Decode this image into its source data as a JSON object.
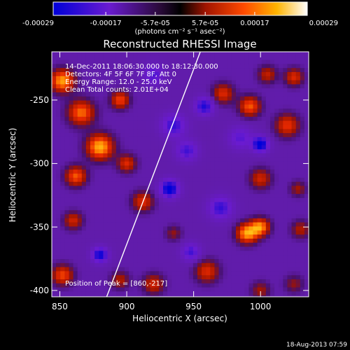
{
  "chart_data": {
    "type": "heatmap",
    "title": "Reconstructed RHESSI Image",
    "xlabel": "Heliocentric X (arcsec)",
    "ylabel": "Heliocentric Y (arcsec)",
    "xlim": [
      844,
      1036
    ],
    "ylim": [
      -405,
      -212
    ],
    "x_ticks": [
      850,
      900,
      950,
      1000
    ],
    "y_ticks": [
      -250,
      -300,
      -350,
      -400
    ],
    "colorbar": {
      "range": [
        -0.00029,
        0.00029
      ],
      "tick_values": [
        -0.00029,
        -0.00017,
        -5.7e-05,
        5.7e-05,
        0.00017,
        0.00029
      ],
      "tick_labels": [
        "-0.00029",
        "-0.00017",
        "-5.7e-05",
        "5.7e-05",
        "0.00017",
        "0.00029"
      ],
      "unit_label": "(photons cm⁻² s⁻¹ asec⁻²)",
      "colors": [
        "#0000d8",
        "#8c1cc8",
        "#000000",
        "#c81e00",
        "#ff8c00",
        "#ffffff"
      ]
    },
    "annotations": {
      "time": "14-Dec-2011 18:06:30.000 to 18:12:30.000",
      "detectors": "Detectors: 4F 5F 6F 7F 8F, Att 0",
      "energy": "Energy Range: 12.0 - 25.0 keV",
      "clean": "Clean    Total counts: 2.01E+04",
      "peak": "Position of Peak = [860,-217]"
    },
    "limb_line": [
      [
        885,
        -405
      ],
      [
        955,
        -212
      ]
    ],
    "field_blobs": [
      {
        "x": 852,
        "y": -235,
        "a": 0.95,
        "r": 9
      },
      {
        "x": 866,
        "y": -260,
        "a": 0.8,
        "r": 10
      },
      {
        "x": 895,
        "y": -250,
        "a": 0.7,
        "r": 7
      },
      {
        "x": 880,
        "y": -287,
        "a": 1.0,
        "r": 10
      },
      {
        "x": 862,
        "y": -310,
        "a": 0.75,
        "r": 8
      },
      {
        "x": 900,
        "y": -300,
        "a": 0.6,
        "r": 7
      },
      {
        "x": 860,
        "y": -345,
        "a": 0.55,
        "r": 7
      },
      {
        "x": 880,
        "y": -372,
        "a": -0.8,
        "r": 6
      },
      {
        "x": 895,
        "y": -392,
        "a": 0.45,
        "r": 7
      },
      {
        "x": 852,
        "y": -388,
        "a": 0.7,
        "r": 8
      },
      {
        "x": 920,
        "y": -230,
        "a": -0.5,
        "r": 8
      },
      {
        "x": 935,
        "y": -270,
        "a": -0.6,
        "r": 9
      },
      {
        "x": 912,
        "y": -330,
        "a": 0.6,
        "r": 8
      },
      {
        "x": 932,
        "y": -320,
        "a": -0.9,
        "r": 7
      },
      {
        "x": 945,
        "y": -290,
        "a": -0.55,
        "r": 8
      },
      {
        "x": 935,
        "y": -355,
        "a": 0.35,
        "r": 6
      },
      {
        "x": 920,
        "y": -395,
        "a": 0.55,
        "r": 8
      },
      {
        "x": 958,
        "y": -255,
        "a": -0.7,
        "r": 7
      },
      {
        "x": 972,
        "y": -245,
        "a": 0.6,
        "r": 8
      },
      {
        "x": 992,
        "y": -255,
        "a": 0.75,
        "r": 8
      },
      {
        "x": 1005,
        "y": -230,
        "a": 0.5,
        "r": 7
      },
      {
        "x": 1025,
        "y": -232,
        "a": 0.6,
        "r": 7
      },
      {
        "x": 1020,
        "y": -270,
        "a": 0.65,
        "r": 9
      },
      {
        "x": 985,
        "y": -280,
        "a": -0.45,
        "r": 9
      },
      {
        "x": 1000,
        "y": -285,
        "a": -0.9,
        "r": 6
      },
      {
        "x": 1000,
        "y": -312,
        "a": 0.55,
        "r": 8
      },
      {
        "x": 970,
        "y": -335,
        "a": -0.6,
        "r": 9
      },
      {
        "x": 990,
        "y": -355,
        "a": 0.95,
        "r": 8
      },
      {
        "x": 1000,
        "y": -350,
        "a": 0.85,
        "r": 7
      },
      {
        "x": 1028,
        "y": -320,
        "a": 0.4,
        "r": 6
      },
      {
        "x": 1030,
        "y": -352,
        "a": 0.45,
        "r": 7
      },
      {
        "x": 960,
        "y": -385,
        "a": 0.6,
        "r": 9
      },
      {
        "x": 1000,
        "y": -400,
        "a": 0.4,
        "r": 7
      },
      {
        "x": 1025,
        "y": -395,
        "a": 0.35,
        "r": 7
      },
      {
        "x": 948,
        "y": -370,
        "a": -0.55,
        "r": 7
      }
    ]
  },
  "footer": {
    "timestamp": "18-Aug-2013 07:59"
  }
}
